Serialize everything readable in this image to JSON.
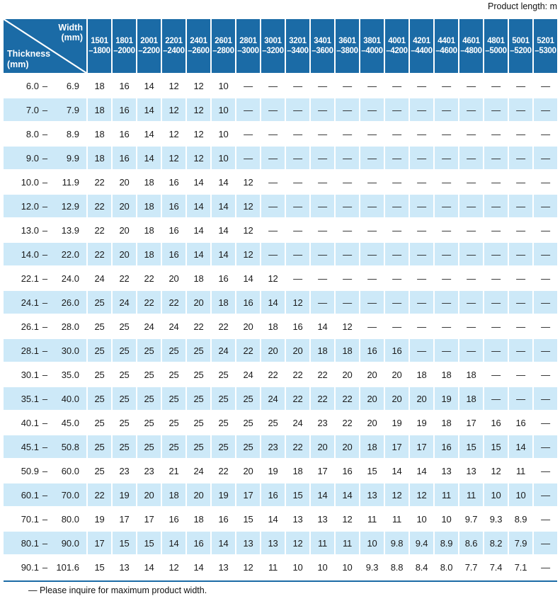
{
  "page": {
    "product_length_note": "Product length: m",
    "footnote": "— Please inquire for maximum product width."
  },
  "colors": {
    "header_bg": "#1b6ba6",
    "row_alt_bg": "#cde9f8",
    "rule": "#1b6ba6",
    "text": "#1a1a1a"
  },
  "table": {
    "corner": {
      "width_label": "Width\n(mm)",
      "thickness_label": "Thickness\n(mm)"
    },
    "columns": [
      [
        "1501",
        "–1800"
      ],
      [
        "1801",
        "–2000"
      ],
      [
        "2001",
        "–2200"
      ],
      [
        "2201",
        "–2400"
      ],
      [
        "2401",
        "–2600"
      ],
      [
        "2601",
        "–2800"
      ],
      [
        "2801",
        "–3000"
      ],
      [
        "3001",
        "–3200"
      ],
      [
        "3201",
        "–3400"
      ],
      [
        "3401",
        "–3600"
      ],
      [
        "3601",
        "–3800"
      ],
      [
        "3801",
        "–4000"
      ],
      [
        "4001",
        "–4200"
      ],
      [
        "4201",
        "–4400"
      ],
      [
        "4401",
        "–4600"
      ],
      [
        "4601",
        "–4800"
      ],
      [
        "4801",
        "–5000"
      ],
      [
        "5001",
        "–5200"
      ],
      [
        "5201",
        "–5300"
      ]
    ],
    "rows": [
      {
        "from": "6.0",
        "to": "6.9",
        "values": [
          "18",
          "16",
          "14",
          "12",
          "12",
          "10",
          "—",
          "—",
          "—",
          "—",
          "—",
          "—",
          "—",
          "—",
          "—",
          "—",
          "—",
          "—",
          "—"
        ]
      },
      {
        "from": "7.0",
        "to": "7.9",
        "values": [
          "18",
          "16",
          "14",
          "12",
          "12",
          "10",
          "—",
          "—",
          "—",
          "—",
          "—",
          "—",
          "—",
          "—",
          "—",
          "—",
          "—",
          "—",
          "—"
        ]
      },
      {
        "from": "8.0",
        "to": "8.9",
        "values": [
          "18",
          "16",
          "14",
          "12",
          "12",
          "10",
          "—",
          "—",
          "—",
          "—",
          "—",
          "—",
          "—",
          "—",
          "—",
          "—",
          "—",
          "—",
          "—"
        ]
      },
      {
        "from": "9.0",
        "to": "9.9",
        "values": [
          "18",
          "16",
          "14",
          "12",
          "12",
          "10",
          "—",
          "—",
          "—",
          "—",
          "—",
          "—",
          "—",
          "—",
          "—",
          "—",
          "—",
          "—",
          "—"
        ]
      },
      {
        "from": "10.0",
        "to": "11.9",
        "values": [
          "22",
          "20",
          "18",
          "16",
          "14",
          "14",
          "12",
          "—",
          "—",
          "—",
          "—",
          "—",
          "—",
          "—",
          "—",
          "—",
          "—",
          "—",
          "—"
        ]
      },
      {
        "from": "12.0",
        "to": "12.9",
        "values": [
          "22",
          "20",
          "18",
          "16",
          "14",
          "14",
          "12",
          "—",
          "—",
          "—",
          "—",
          "—",
          "—",
          "—",
          "—",
          "—",
          "—",
          "—",
          "—"
        ]
      },
      {
        "from": "13.0",
        "to": "13.9",
        "values": [
          "22",
          "20",
          "18",
          "16",
          "14",
          "14",
          "12",
          "—",
          "—",
          "—",
          "—",
          "—",
          "—",
          "—",
          "—",
          "—",
          "—",
          "—",
          "—"
        ]
      },
      {
        "from": "14.0",
        "to": "22.0",
        "values": [
          "22",
          "20",
          "18",
          "16",
          "14",
          "14",
          "12",
          "—",
          "—",
          "—",
          "—",
          "—",
          "—",
          "—",
          "—",
          "—",
          "—",
          "—",
          "—"
        ]
      },
      {
        "from": "22.1",
        "to": "24.0",
        "values": [
          "24",
          "22",
          "22",
          "20",
          "18",
          "16",
          "14",
          "12",
          "—",
          "—",
          "—",
          "—",
          "—",
          "—",
          "—",
          "—",
          "—",
          "—",
          "—"
        ]
      },
      {
        "from": "24.1",
        "to": "26.0",
        "values": [
          "25",
          "24",
          "22",
          "22",
          "20",
          "18",
          "16",
          "14",
          "12",
          "—",
          "—",
          "—",
          "—",
          "—",
          "—",
          "—",
          "—",
          "—",
          "—"
        ]
      },
      {
        "from": "26.1",
        "to": "28.0",
        "values": [
          "25",
          "25",
          "24",
          "24",
          "22",
          "22",
          "20",
          "18",
          "16",
          "14",
          "12",
          "—",
          "—",
          "—",
          "—",
          "—",
          "—",
          "—",
          "—"
        ]
      },
      {
        "from": "28.1",
        "to": "30.0",
        "values": [
          "25",
          "25",
          "25",
          "25",
          "25",
          "24",
          "22",
          "20",
          "20",
          "18",
          "18",
          "16",
          "16",
          "—",
          "—",
          "—",
          "—",
          "—",
          "—"
        ]
      },
      {
        "from": "30.1",
        "to": "35.0",
        "values": [
          "25",
          "25",
          "25",
          "25",
          "25",
          "25",
          "24",
          "22",
          "22",
          "22",
          "20",
          "20",
          "20",
          "18",
          "18",
          "18",
          "—",
          "—",
          "—"
        ]
      },
      {
        "from": "35.1",
        "to": "40.0",
        "values": [
          "25",
          "25",
          "25",
          "25",
          "25",
          "25",
          "25",
          "24",
          "22",
          "22",
          "22",
          "20",
          "20",
          "20",
          "19",
          "18",
          "—",
          "—",
          "—"
        ]
      },
      {
        "from": "40.1",
        "to": "45.0",
        "values": [
          "25",
          "25",
          "25",
          "25",
          "25",
          "25",
          "25",
          "25",
          "24",
          "23",
          "22",
          "20",
          "19",
          "19",
          "18",
          "17",
          "16",
          "16",
          "—"
        ]
      },
      {
        "from": "45.1",
        "to": "50.8",
        "values": [
          "25",
          "25",
          "25",
          "25",
          "25",
          "25",
          "25",
          "23",
          "22",
          "20",
          "20",
          "18",
          "17",
          "17",
          "16",
          "15",
          "15",
          "14",
          "—"
        ]
      },
      {
        "from": "50.9",
        "to": "60.0",
        "values": [
          "25",
          "23",
          "23",
          "21",
          "24",
          "22",
          "20",
          "19",
          "18",
          "17",
          "16",
          "15",
          "14",
          "14",
          "13",
          "13",
          "12",
          "11",
          "—"
        ]
      },
      {
        "from": "60.1",
        "to": "70.0",
        "values": [
          "22",
          "19",
          "20",
          "18",
          "20",
          "19",
          "17",
          "16",
          "15",
          "14",
          "14",
          "13",
          "12",
          "12",
          "11",
          "11",
          "10",
          "10",
          "—"
        ]
      },
      {
        "from": "70.1",
        "to": "80.0",
        "values": [
          "19",
          "17",
          "17",
          "16",
          "18",
          "16",
          "15",
          "14",
          "13",
          "13",
          "12",
          "11",
          "11",
          "10",
          "10",
          "9.7",
          "9.3",
          "8.9",
          "—"
        ]
      },
      {
        "from": "80.1",
        "to": "90.0",
        "values": [
          "17",
          "15",
          "15",
          "14",
          "16",
          "14",
          "13",
          "13",
          "12",
          "11",
          "11",
          "10",
          "9.8",
          "9.4",
          "8.9",
          "8.6",
          "8.2",
          "7.9",
          "—"
        ]
      },
      {
        "from": "90.1",
        "to": "101.6",
        "values": [
          "15",
          "13",
          "14",
          "12",
          "14",
          "13",
          "12",
          "11",
          "10",
          "10",
          "10",
          "9.3",
          "8.8",
          "8.4",
          "8.0",
          "7.7",
          "7.4",
          "7.1",
          "—"
        ]
      }
    ]
  }
}
